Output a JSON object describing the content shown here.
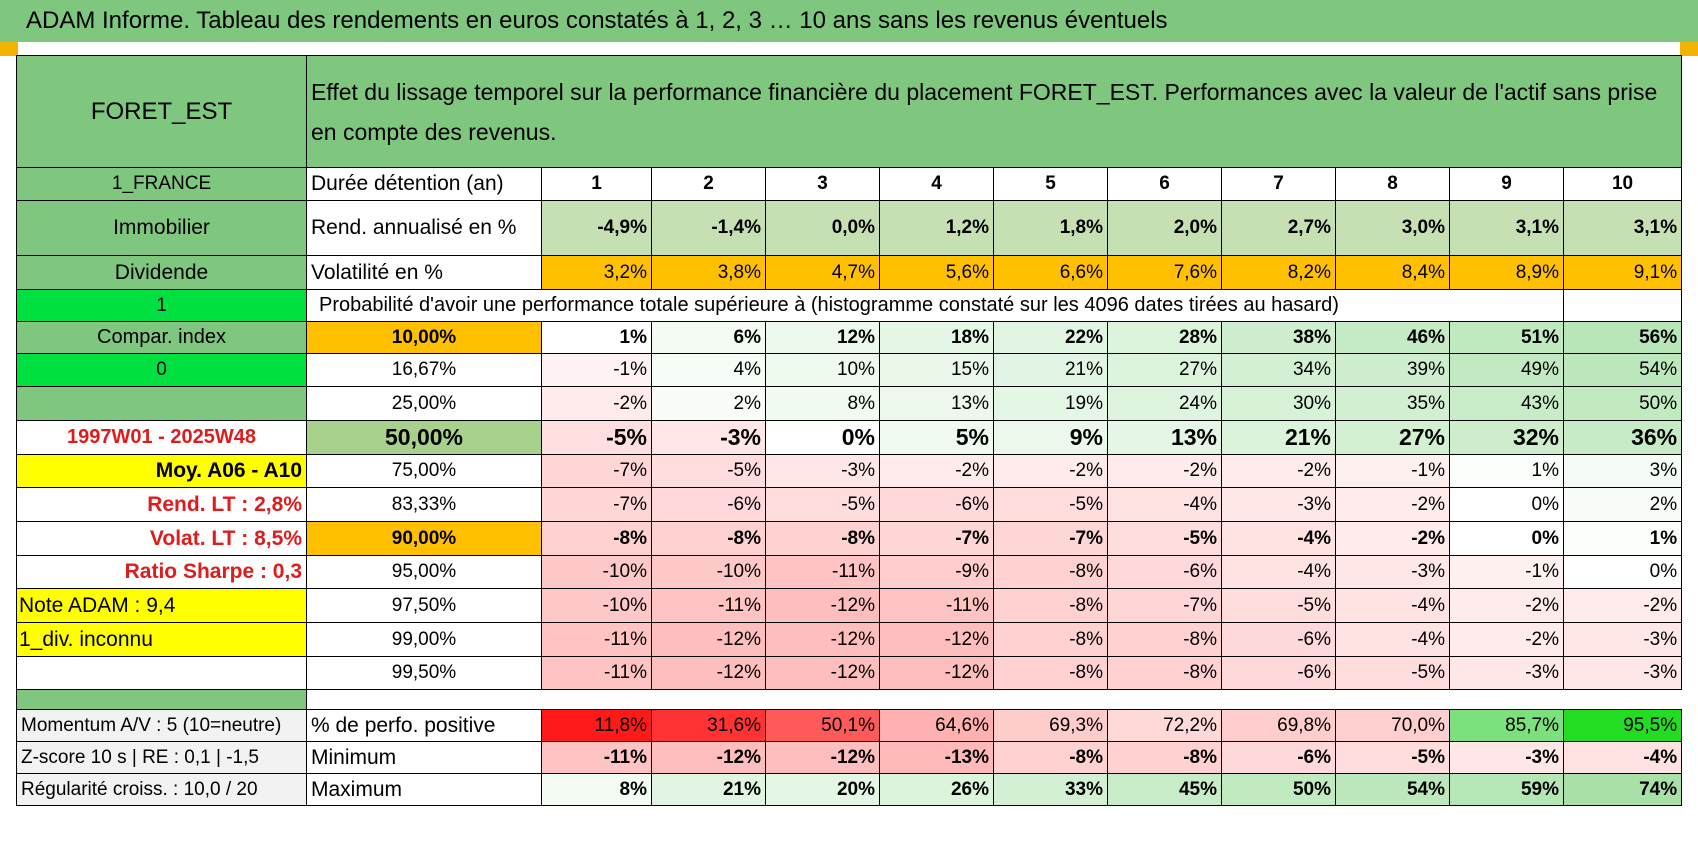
{
  "title": "ADAM Informe. Tableau des rendements en euros constatés à 1, 2, 3 … 10 ans sans les revenus éventuels",
  "colors": {
    "header_green": "#7fc77f",
    "bright_green": "#00e040",
    "orange": "#ffc000",
    "yellow": "#ffff00",
    "red_text": "#e01b1b"
  },
  "fund": {
    "name": "FORET_EST",
    "description": "Effet du lissage temporel sur la performance financière du placement FORET_EST. Performances avec la valeur de l'actif sans prise en compte des revenus.",
    "country": "1_FRANCE",
    "category": "Immobilier",
    "type": "Dividende",
    "flag1": "1",
    "compar_label": "Compar. index",
    "flag2": "0",
    "period": "1997W01 - 2025W48",
    "moy": "Moy. A06 - A10",
    "rend_lt": "Rend. LT :   2,8%",
    "volat_lt": "Volat. LT :   8,5%",
    "sharpe": "Ratio Sharpe :    0,3",
    "note": "Note ADAM : 9,4",
    "div": "1_div. inconnu"
  },
  "header_row": {
    "label": "Durée détention (an)",
    "years": [
      "1",
      "2",
      "3",
      "4",
      "5",
      "6",
      "7",
      "8",
      "9",
      "10"
    ]
  },
  "rend": {
    "label": "Rend. annualisé en %",
    "values": [
      "-4,9%",
      "-1,4%",
      "0,0%",
      "1,2%",
      "1,8%",
      "2,0%",
      "2,7%",
      "3,0%",
      "3,1%",
      "3,1%"
    ]
  },
  "volat": {
    "label": "Volatilité en %",
    "values": [
      "3,2%",
      "3,8%",
      "4,7%",
      "5,6%",
      "6,6%",
      "7,6%",
      "8,2%",
      "8,4%",
      "8,9%",
      "9,1%"
    ]
  },
  "proba_label": "Probabilité d'avoir une performance totale supérieure à (histogramme constaté sur les 4096 dates tirées au hasard)",
  "quantiles": [
    {
      "label": "10,00%",
      "values": [
        "1%",
        "6%",
        "12%",
        "18%",
        "22%",
        "28%",
        "38%",
        "46%",
        "51%",
        "56%"
      ]
    },
    {
      "label": "16,67%",
      "values": [
        "-1%",
        "4%",
        "10%",
        "15%",
        "21%",
        "27%",
        "34%",
        "39%",
        "49%",
        "54%"
      ]
    },
    {
      "label": "25,00%",
      "values": [
        "-2%",
        "2%",
        "8%",
        "13%",
        "19%",
        "24%",
        "30%",
        "35%",
        "43%",
        "50%"
      ]
    },
    {
      "label": "50,00%",
      "values": [
        "-5%",
        "-3%",
        "0%",
        "5%",
        "9%",
        "13%",
        "21%",
        "27%",
        "32%",
        "36%"
      ]
    },
    {
      "label": "75,00%",
      "values": [
        "-7%",
        "-5%",
        "-3%",
        "-2%",
        "-2%",
        "-2%",
        "-2%",
        "-1%",
        "1%",
        "3%"
      ]
    },
    {
      "label": "83,33%",
      "values": [
        "-7%",
        "-6%",
        "-5%",
        "-6%",
        "-5%",
        "-4%",
        "-3%",
        "-2%",
        "0%",
        "2%"
      ]
    },
    {
      "label": "90,00%",
      "values": [
        "-8%",
        "-8%",
        "-8%",
        "-7%",
        "-7%",
        "-5%",
        "-4%",
        "-2%",
        "0%",
        "1%"
      ]
    },
    {
      "label": "95,00%",
      "values": [
        "-10%",
        "-10%",
        "-11%",
        "-9%",
        "-8%",
        "-6%",
        "-4%",
        "-3%",
        "-1%",
        "0%"
      ]
    },
    {
      "label": "97,50%",
      "values": [
        "-10%",
        "-11%",
        "-12%",
        "-11%",
        "-8%",
        "-7%",
        "-5%",
        "-4%",
        "-2%",
        "-2%"
      ]
    },
    {
      "label": "99,00%",
      "values": [
        "-11%",
        "-12%",
        "-12%",
        "-12%",
        "-8%",
        "-8%",
        "-6%",
        "-4%",
        "-2%",
        "-3%"
      ]
    },
    {
      "label": "99,50%",
      "values": [
        "-11%",
        "-12%",
        "-12%",
        "-12%",
        "-8%",
        "-8%",
        "-6%",
        "-5%",
        "-3%",
        "-3%"
      ]
    }
  ],
  "bottom": [
    {
      "side": "Momentum A/V : 5 (10=neutre)",
      "label": "% de perfo. positive",
      "values": [
        "11,8%",
        "31,6%",
        "50,1%",
        "64,6%",
        "69,3%",
        "72,2%",
        "69,8%",
        "70,0%",
        "85,7%",
        "95,5%"
      ]
    },
    {
      "side": "Z-score 10 s | RE : 0,1 | -1,5",
      "label": "Minimum",
      "values": [
        "-11%",
        "-12%",
        "-12%",
        "-13%",
        "-8%",
        "-8%",
        "-6%",
        "-5%",
        "-3%",
        "-4%"
      ]
    },
    {
      "side": "Régularité croiss. : 10,0 / 20",
      "label": "Maximum",
      "values": [
        "8%",
        "21%",
        "20%",
        "26%",
        "33%",
        "45%",
        "50%",
        "54%",
        "59%",
        "74%"
      ]
    }
  ],
  "cell_colors": {
    "rend": [
      "#c6e0b4",
      "#c6e0b4",
      "#c6e0b4",
      "#c6e0b4",
      "#c6e0b4",
      "#c6e0b4",
      "#c6e0b4",
      "#c6e0b4",
      "#c6e0b4",
      "#c6e0b4"
    ],
    "quantiles": [
      [
        "#ffffff",
        "#f3fbf3",
        "#edf9ed",
        "#e6f7e6",
        "#e2f5e2",
        "#dcf3dc",
        "#cfeecf",
        "#c5ebc5",
        "#bfe9bf",
        "#b9e6b9"
      ],
      [
        "#fff2f2",
        "#f6fcf6",
        "#eefaee",
        "#e9f8e9",
        "#e2f5e2",
        "#dcf3dc",
        "#d4f0d4",
        "#cfeecf",
        "#c2eac2",
        "#bde8bd"
      ],
      [
        "#ffebeb",
        "#f9fdf9",
        "#f1fbf1",
        "#ebf8eb",
        "#e4f6e4",
        "#def4de",
        "#d8f2d8",
        "#d2efd2",
        "#c8ecc8",
        "#c1eac1"
      ],
      [
        "#ffdfdf",
        "#ffe7e7",
        "#ffffff",
        "#f0faf0",
        "#ebf8eb",
        "#e5f6e5",
        "#dbf3db",
        "#d3f0d3",
        "#cdedcd",
        "#c6ebc6"
      ],
      [
        "#ffd6d6",
        "#ffdddd",
        "#ffe7e7",
        "#ffebeb",
        "#ffebeb",
        "#ffebeb",
        "#ffebeb",
        "#fff0f0",
        "#fbfefb",
        "#f5fbf5"
      ],
      [
        "#ffd6d6",
        "#ffd9d9",
        "#ffdddd",
        "#ffd9d9",
        "#ffdddd",
        "#ffe2e2",
        "#ffe7e7",
        "#ffebeb",
        "#ffffff",
        "#f8fdf8"
      ],
      [
        "#ffd1d1",
        "#ffd1d1",
        "#ffd1d1",
        "#ffd6d6",
        "#ffd6d6",
        "#ffdddd",
        "#ffe2e2",
        "#ffebeb",
        "#ffffff",
        "#fbfefb"
      ],
      [
        "#ffc8c8",
        "#ffc8c8",
        "#ffc3c3",
        "#ffcdcd",
        "#ffd1d1",
        "#ffd9d9",
        "#ffe2e2",
        "#ffe7e7",
        "#fff0f0",
        "#ffffff"
      ],
      [
        "#ffc8c8",
        "#ffc3c3",
        "#ffbebe",
        "#ffc3c3",
        "#ffd1d1",
        "#ffd6d6",
        "#ffdddd",
        "#ffe2e2",
        "#ffebeb",
        "#ffebeb"
      ],
      [
        "#ffc3c3",
        "#ffbebe",
        "#ffbebe",
        "#ffbebe",
        "#ffd1d1",
        "#ffd1d1",
        "#ffd9d9",
        "#ffe2e2",
        "#ffebeb",
        "#ffe7e7"
      ],
      [
        "#ffc3c3",
        "#ffbebe",
        "#ffbebe",
        "#ffbebe",
        "#ffd1d1",
        "#ffd1d1",
        "#ffd9d9",
        "#ffdddd",
        "#ffe7e7",
        "#ffe7e7"
      ]
    ],
    "bottom": [
      [
        "#ff1a1a",
        "#ff3333",
        "#ff5a5a",
        "#ffb0b0",
        "#ffcccc",
        "#ffd8d8",
        "#ffcdcd",
        "#ffcece",
        "#7ce07c",
        "#22dd22"
      ],
      [
        "#ffc3c3",
        "#ffbebe",
        "#ffbebe",
        "#ffb9b9",
        "#ffd1d1",
        "#ffd1d1",
        "#ffd9d9",
        "#ffdddd",
        "#ffe7e7",
        "#ffe2e2"
      ],
      [
        "#f3fbf3",
        "#e2f5e2",
        "#e4f6e4",
        "#dcf3dc",
        "#d4f0d4",
        "#c8ecc8",
        "#c1eac1",
        "#bde8bd",
        "#b6e5b6",
        "#a8e0a8"
      ]
    ]
  }
}
